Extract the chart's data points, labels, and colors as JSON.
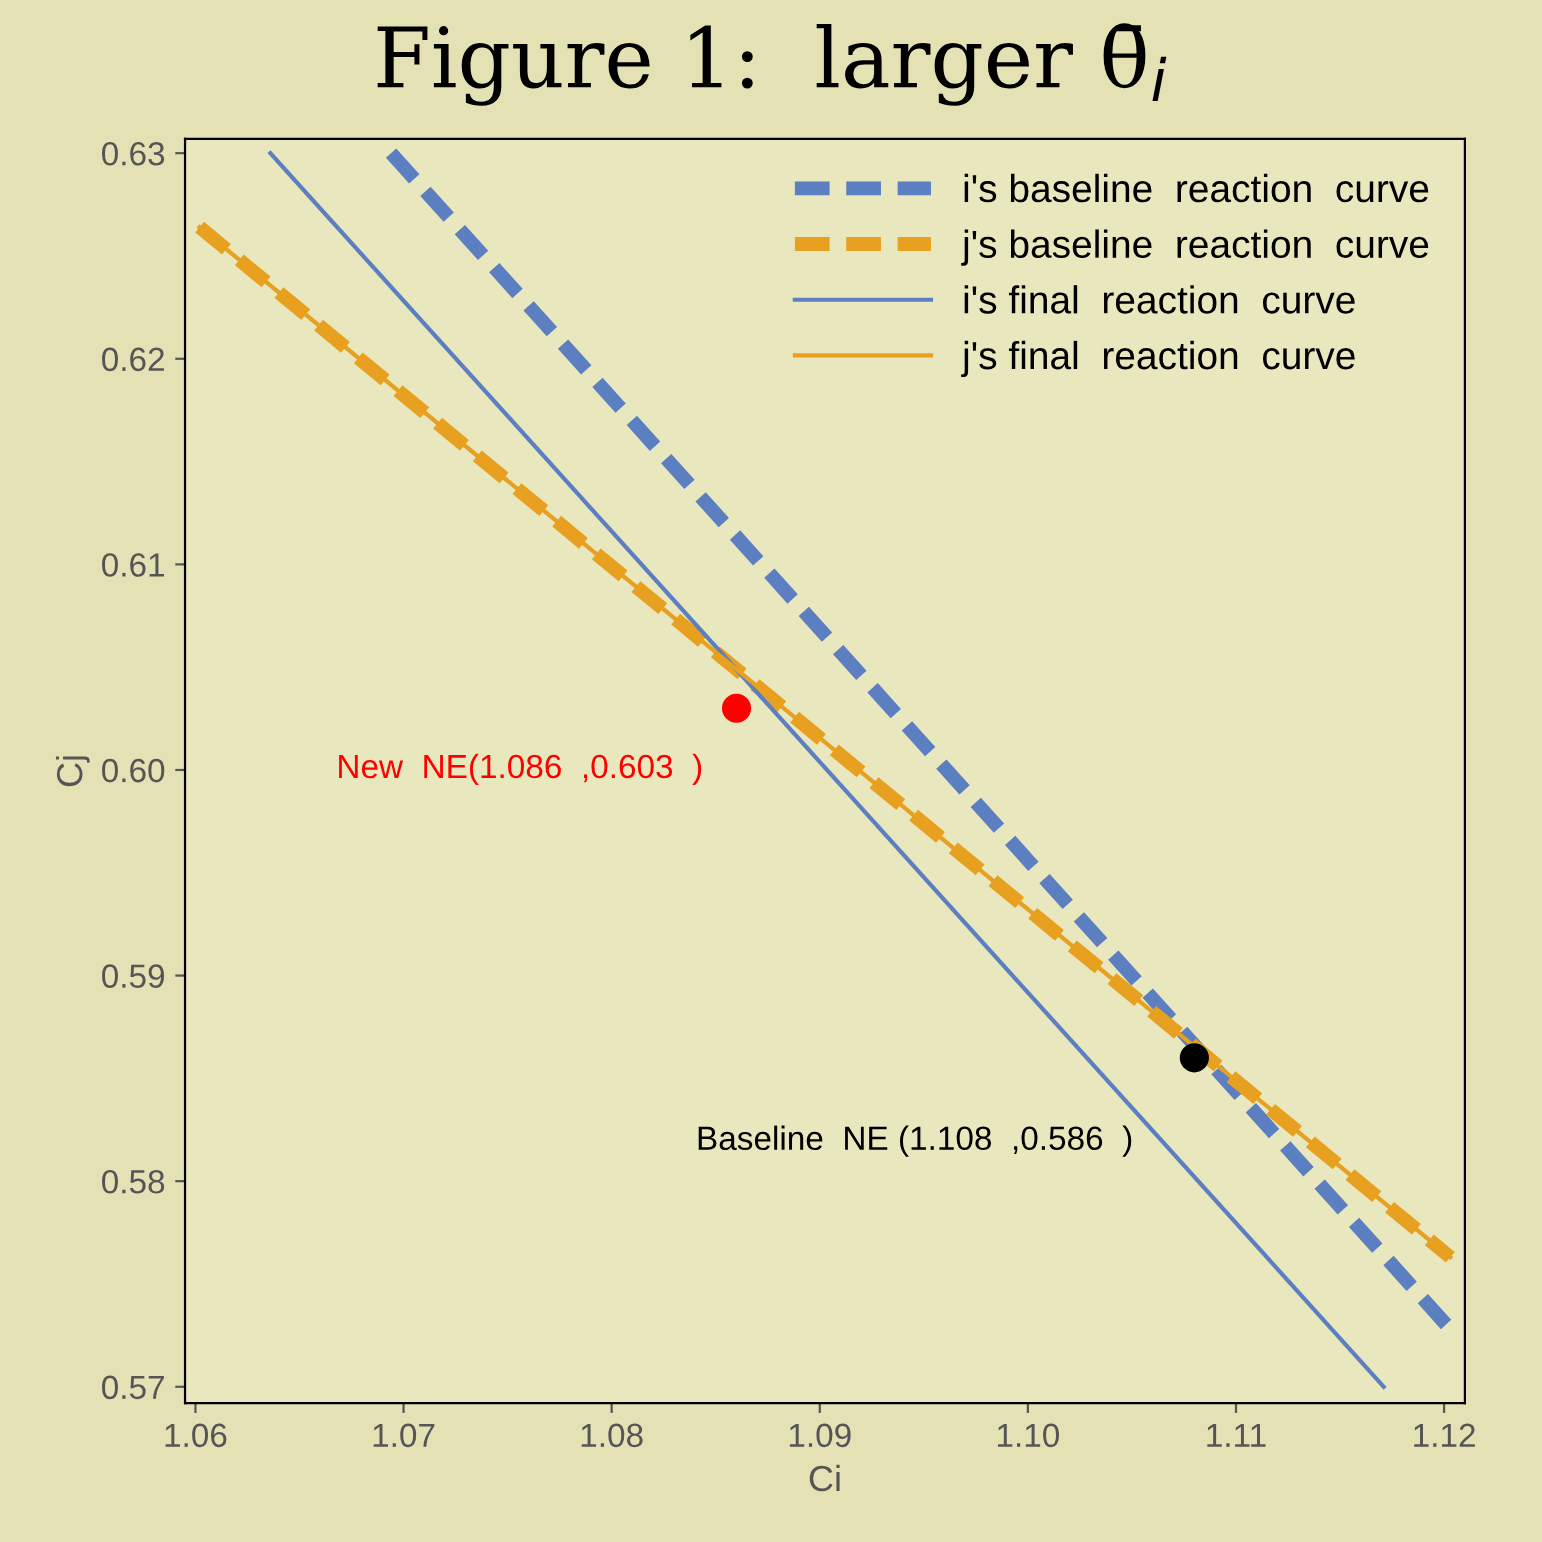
{
  "chart_data": {
    "type": "line",
    "title": "Figure 1:  larger θ̄$_{i}$",
    "xlabel": "Ci",
    "ylabel": "Cj",
    "xlim": [
      1.0595,
      1.121
    ],
    "ylim": [
      0.5692,
      0.6307
    ],
    "xticks": [
      {
        "value": 1.06,
        "label": "1.06"
      },
      {
        "value": 1.07,
        "label": "1.07"
      },
      {
        "value": 1.08,
        "label": "1.08"
      },
      {
        "value": 1.09,
        "label": "1.09"
      },
      {
        "value": 1.1,
        "label": "1.10"
      },
      {
        "value": 1.11,
        "label": "1.11"
      },
      {
        "value": 1.12,
        "label": "1.12"
      }
    ],
    "yticks": [
      {
        "value": 0.57,
        "label": "0.57"
      },
      {
        "value": 0.58,
        "label": "0.58"
      },
      {
        "value": 0.59,
        "label": "0.59"
      },
      {
        "value": 0.6,
        "label": "0.60"
      },
      {
        "value": 0.61,
        "label": "0.61"
      },
      {
        "value": 0.62,
        "label": "0.62"
      },
      {
        "value": 0.63,
        "label": "0.63"
      }
    ],
    "legend": "top right",
    "grid": false,
    "series": [
      {
        "name": "i's baseline  reaction  curve",
        "line_style": "dashed",
        "color": "#5b7fc0",
        "x": [
          1.0694,
          1.1203
        ],
        "values": [
          0.63,
          0.5728
        ]
      },
      {
        "name": "j's baseline  reaction  curve",
        "line_style": "dashed",
        "color": "#e8a020",
        "x": [
          1.0602,
          1.1203
        ],
        "values": [
          0.6264,
          0.5763
        ]
      },
      {
        "name": "i's final  reaction  curve",
        "line_style": "solid",
        "color": "#5b7fc0",
        "x": [
          1.0636,
          1.1171
        ],
        "values": [
          0.63,
          0.57
        ]
      },
      {
        "name": "j's final  reaction  curve",
        "line_style": "solid",
        "color": "#e8a020",
        "x": [
          1.0602,
          1.1203
        ],
        "values": [
          0.6264,
          0.5763
        ]
      },
      {
        "type": "scatter",
        "marker": "circle",
        "color": "#ff0000",
        "x": [
          1.086
        ],
        "values": [
          0.603
        ]
      },
      {
        "type": "scatter",
        "marker": "circle",
        "color": "#000000",
        "x": [
          1.108
        ],
        "values": [
          0.586
        ]
      }
    ],
    "annotations": [
      {
        "text": "New  NE(1.086  ,0.603  )",
        "x": 1.086,
        "y": 0.603
      },
      {
        "text": "Baseline  NE (1.108  ,0.586  )",
        "x": 1.108,
        "y": 0.586
      }
    ]
  }
}
